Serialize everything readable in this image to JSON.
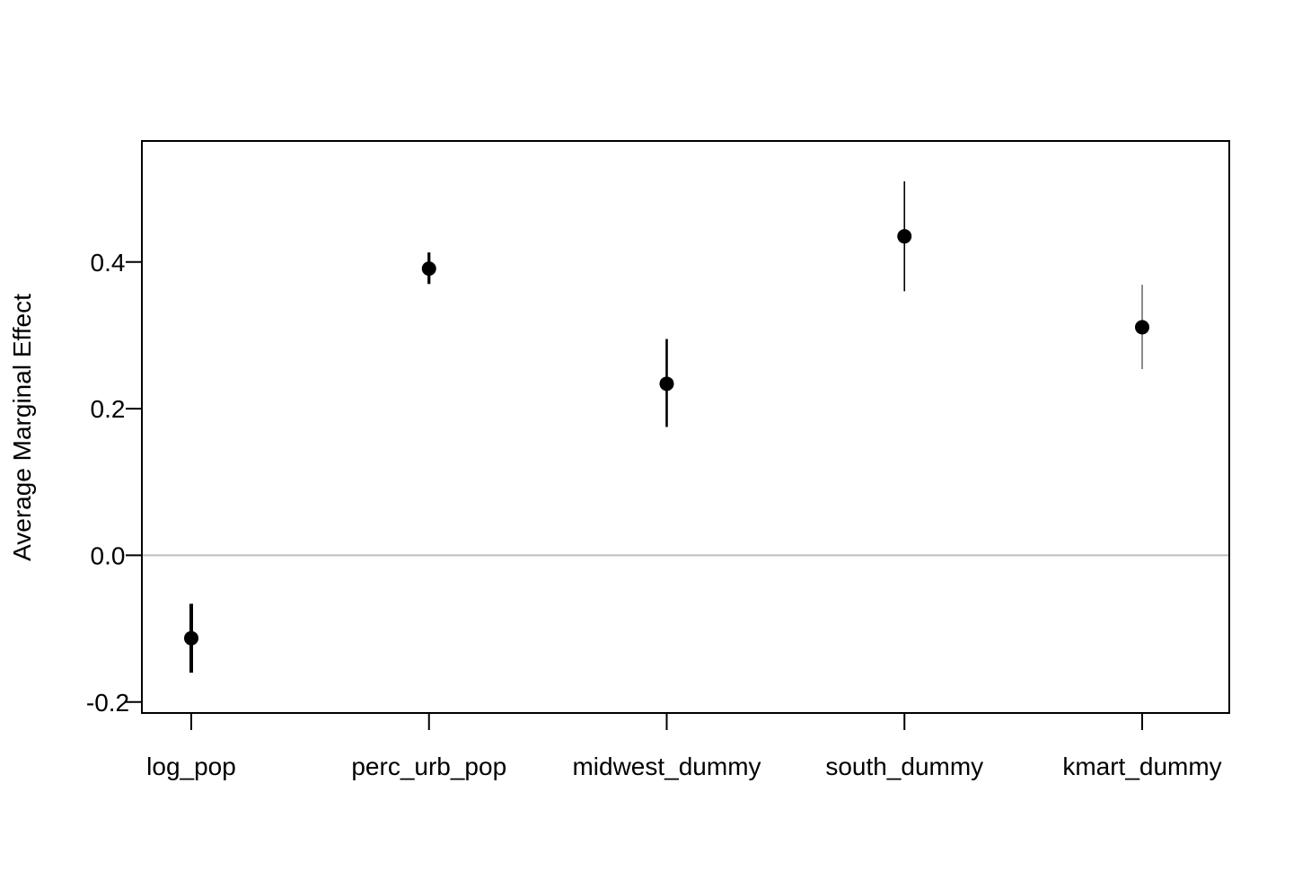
{
  "chart_data": {
    "type": "scatter",
    "title": "",
    "xlabel": "",
    "ylabel": "Average Marginal Effect",
    "categories": [
      "log_pop",
      "perc_urb_pop",
      "midwest_dummy",
      "south_dummy",
      "kmart_dummy"
    ],
    "estimates": [
      -0.113,
      0.391,
      0.234,
      0.435,
      0.311
    ],
    "ci_lower": [
      -0.16,
      0.37,
      0.175,
      0.36,
      0.254
    ],
    "ci_upper": [
      -0.066,
      0.413,
      0.295,
      0.51,
      0.369
    ],
    "ylim": [
      -0.215,
      0.565
    ],
    "yticks": [
      -0.2,
      0.0,
      0.2,
      0.4
    ],
    "ytick_labels": [
      "-0.2",
      "0.0",
      "0.2",
      "0.4"
    ],
    "reference_line": 0.0,
    "reference_line_color": "#bebebe",
    "point_color": "#000000",
    "grid": false,
    "legend": "none"
  }
}
